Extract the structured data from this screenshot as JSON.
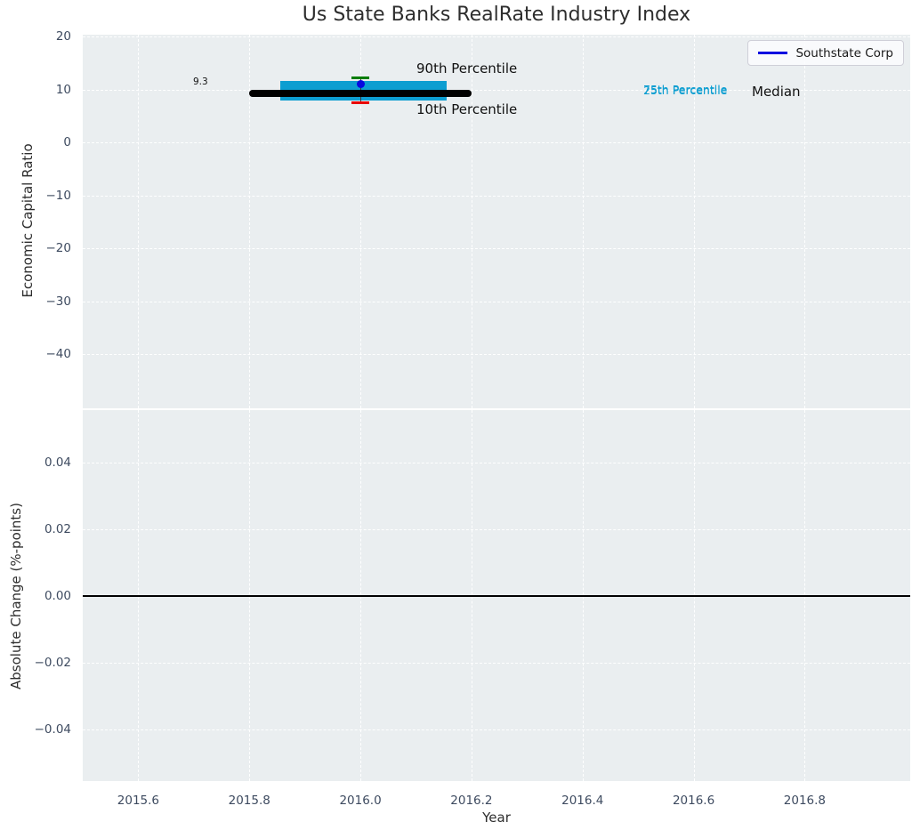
{
  "figure": {
    "title": "Us State Banks RealRate Industry Index",
    "plot_bg_color": "#eaeef0",
    "grid_color": "#ffffff",
    "tick_text_color": "#3e4b60"
  },
  "chart_data": [
    {
      "type": "boxplot",
      "title": "Us State Banks RealRate Industry Index",
      "ylabel": "Economic Capital Ratio",
      "xlim": [
        2015.5,
        2016.99
      ],
      "ylim": [
        -50.2,
        20.4
      ],
      "grid": true,
      "legend_position": "upper right",
      "yticks": [
        {
          "v": 20,
          "label": "20"
        },
        {
          "v": 10,
          "label": "10"
        },
        {
          "v": 0,
          "label": "0"
        },
        {
          "v": -10,
          "label": "−10"
        },
        {
          "v": -20,
          "label": "−20"
        },
        {
          "v": -30,
          "label": "−30"
        },
        {
          "v": -40,
          "label": "−40"
        }
      ],
      "box": {
        "x": 2016.0,
        "p90": 12.3,
        "q3": 11.6,
        "median": 9.3,
        "q1": 8.0,
        "p10": 7.5,
        "median_label": "9.3",
        "median_line_span": [
          2015.8,
          2016.2
        ],
        "box_span": [
          2015.855,
          2016.155
        ],
        "cap_half_width_years": 0.016,
        "colors": {
          "box": "#0d9ed1",
          "median": "#000000",
          "p90_cap": "#007d00",
          "p10_cap": "#e80000",
          "whisker": "#3a3a3a"
        }
      },
      "series": [
        {
          "name": "Southstate Corp",
          "marker": "circle",
          "color": "#0707e0",
          "x": 2016.0,
          "y": 11.0
        }
      ],
      "annotations": {
        "p90": "90th Percentile",
        "p10": "10th Percentile",
        "p75": "75th Percentile",
        "p25": "25th Percentile",
        "median": "Median"
      }
    },
    {
      "type": "line",
      "ylabel": "Absolute Change (%-points)",
      "xlabel": "Year",
      "xlim": [
        2015.5,
        2016.99
      ],
      "ylim": [
        -0.0556,
        0.0556
      ],
      "grid": true,
      "yticks": [
        {
          "v": 0.04,
          "label": "0.04"
        },
        {
          "v": 0.02,
          "label": "0.02"
        },
        {
          "v": 0.0,
          "label": "0.00"
        },
        {
          "v": -0.02,
          "label": "−0.02"
        },
        {
          "v": -0.04,
          "label": "−0.04"
        }
      ],
      "xticks": [
        {
          "v": 2015.6,
          "label": "2015.6"
        },
        {
          "v": 2015.8,
          "label": "2015.8"
        },
        {
          "v": 2016.0,
          "label": "2016.0"
        },
        {
          "v": 2016.2,
          "label": "2016.2"
        },
        {
          "v": 2016.4,
          "label": "2016.4"
        },
        {
          "v": 2016.6,
          "label": "2016.6"
        },
        {
          "v": 2016.8,
          "label": "2016.8"
        }
      ],
      "zero_line": {
        "y": 0.0,
        "color": "#000000"
      },
      "series": []
    }
  ]
}
